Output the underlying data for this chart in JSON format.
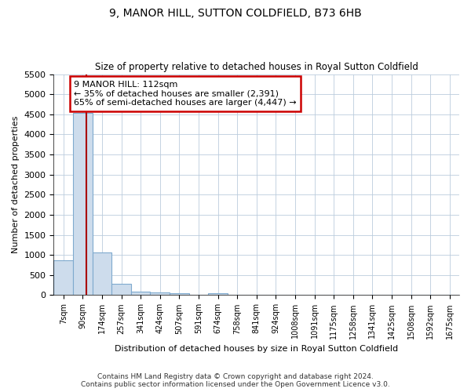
{
  "title": "9, MANOR HILL, SUTTON COLDFIELD, B73 6HB",
  "subtitle": "Size of property relative to detached houses in Royal Sutton Coldfield",
  "xlabel": "Distribution of detached houses by size in Royal Sutton Coldfield",
  "ylabel": "Number of detached properties",
  "footer_line1": "Contains HM Land Registry data © Crown copyright and database right 2024.",
  "footer_line2": "Contains public sector information licensed under the Open Government Licence v3.0.",
  "bar_color": "#cddcec",
  "bar_edge_color": "#7faace",
  "annotation_box_color": "#cc0000",
  "vline_color": "#aa0000",
  "annotation_text": "9 MANOR HILL: 112sqm\n← 35% of detached houses are smaller (2,391)\n65% of semi-detached houses are larger (4,447) →",
  "property_size_sqm": 112,
  "categories": [
    "7sqm",
    "90sqm",
    "174sqm",
    "257sqm",
    "341sqm",
    "424sqm",
    "507sqm",
    "591sqm",
    "674sqm",
    "758sqm",
    "841sqm",
    "924sqm",
    "1008sqm",
    "1091sqm",
    "1175sqm",
    "1258sqm",
    "1341sqm",
    "1425sqm",
    "1508sqm",
    "1592sqm",
    "1675sqm"
  ],
  "values": [
    870,
    4540,
    1070,
    280,
    95,
    75,
    55,
    0,
    55,
    0,
    0,
    0,
    0,
    0,
    0,
    0,
    0,
    0,
    0,
    0,
    0
  ],
  "ylim": [
    0,
    5500
  ],
  "yticks": [
    0,
    500,
    1000,
    1500,
    2000,
    2500,
    3000,
    3500,
    4000,
    4500,
    5000,
    5500
  ],
  "background_color": "#ffffff",
  "grid_color": "#bbccdd",
  "vline_x": 1.2
}
